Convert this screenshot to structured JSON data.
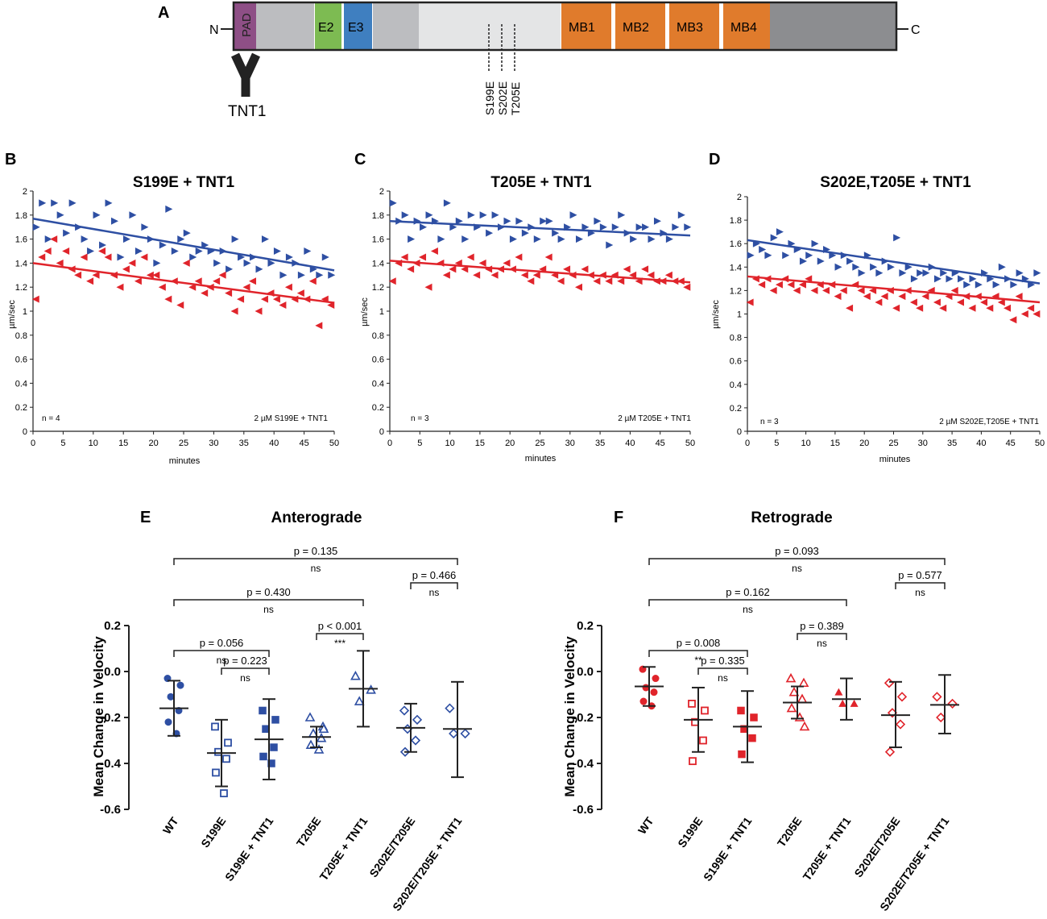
{
  "panels": {
    "A": {
      "label": "A",
      "n_term": "N",
      "c_term": "C",
      "domains": [
        "PAD",
        "E2",
        "E3",
        "MB1",
        "MB2",
        "MB3",
        "MB4"
      ],
      "sites": [
        "S199E",
        "S202E",
        "T205E"
      ],
      "antibody": "TNT1",
      "colors": {
        "pad": "#8e4f86",
        "e2": "#7dbb52",
        "e3": "#3f7fc0",
        "mb": "#e07b2c",
        "grey": "#bcbdc0",
        "light": "#e4e5e6",
        "dark": "#8c8d90"
      }
    }
  },
  "chart_data": [
    {
      "id": "B",
      "label": "B",
      "type": "scatter",
      "title": "S199E + TNT1",
      "xlabel": "minutes",
      "ylabel": "µm/sec",
      "xlim": [
        0,
        50
      ],
      "ylim": [
        0,
        2
      ],
      "xticks": [
        "0",
        "5",
        "10",
        "15",
        "20",
        "25",
        "30",
        "35",
        "40",
        "45",
        "50"
      ],
      "yticks": [
        "0",
        "0.2",
        "0.4",
        "0.6",
        "0.8",
        "1",
        "1.2",
        "1.4",
        "1.6",
        "1.8",
        "2"
      ],
      "n_label": "n = 4",
      "condition": "2 µM S199E + TNT1",
      "series": [
        {
          "name": "anterograde",
          "color": "#2e4fa3",
          "marker": "right-triangle",
          "trend": [
            1.77,
            1.34
          ],
          "x": [
            0,
            1,
            2,
            3,
            4,
            5,
            6,
            7,
            8,
            9,
            10,
            11,
            12,
            13,
            14,
            15,
            16,
            17,
            18,
            19,
            20,
            21,
            22,
            23,
            24,
            25,
            26,
            27,
            28,
            29,
            30,
            31,
            32,
            33,
            34,
            35,
            36,
            37,
            38,
            39,
            40,
            41,
            42,
            43,
            44,
            45,
            46,
            47,
            48,
            49
          ],
          "y": [
            1.7,
            1.9,
            1.6,
            1.9,
            1.8,
            1.65,
            1.9,
            1.7,
            1.6,
            1.5,
            1.8,
            1.55,
            1.9,
            1.75,
            1.45,
            1.6,
            1.8,
            1.5,
            1.7,
            1.6,
            1.4,
            1.55,
            1.85,
            1.5,
            1.6,
            1.65,
            1.45,
            1.5,
            1.55,
            1.5,
            1.4,
            1.5,
            1.35,
            1.6,
            1.45,
            1.4,
            1.45,
            1.35,
            1.6,
            1.4,
            1.5,
            1.3,
            1.45,
            1.4,
            1.3,
            1.5,
            1.35,
            1.3,
            1.45,
            1.3
          ]
        },
        {
          "name": "retrograde",
          "color": "#e0242b",
          "marker": "left-triangle",
          "trend": [
            1.4,
            1.07
          ],
          "x": [
            0,
            1,
            2,
            3,
            4,
            5,
            6,
            7,
            8,
            9,
            10,
            11,
            12,
            13,
            14,
            15,
            16,
            17,
            18,
            19,
            20,
            21,
            22,
            23,
            24,
            25,
            26,
            27,
            28,
            29,
            30,
            31,
            32,
            33,
            34,
            35,
            36,
            37,
            38,
            39,
            40,
            41,
            42,
            43,
            44,
            45,
            46,
            47,
            48,
            49
          ],
          "y": [
            1.1,
            1.45,
            1.5,
            1.6,
            1.4,
            1.5,
            1.35,
            1.3,
            1.45,
            1.25,
            1.3,
            1.5,
            1.45,
            1.3,
            1.2,
            1.35,
            1.4,
            1.25,
            1.45,
            1.3,
            1.3,
            1.2,
            1.1,
            1.25,
            1.05,
            1.4,
            1.2,
            1.25,
            1.15,
            1.2,
            1.25,
            1.3,
            1.15,
            1.0,
            1.1,
            1.2,
            1.25,
            1.0,
            1.1,
            1.15,
            1.1,
            1.05,
            1.2,
            1.1,
            1.15,
            1.1,
            1.25,
            0.88,
            1.1,
            1.05
          ]
        }
      ]
    },
    {
      "id": "C",
      "label": "C",
      "type": "scatter",
      "title": "T205E + TNT1",
      "xlabel": "minutes",
      "ylabel": "µm/sec",
      "xlim": [
        0,
        50
      ],
      "ylim": [
        0,
        2
      ],
      "xticks": [
        "0",
        "5",
        "10",
        "15",
        "20",
        "25",
        "30",
        "35",
        "40",
        "45",
        "50"
      ],
      "yticks": [
        "0",
        "0.2",
        "0.4",
        "0.6",
        "0.8",
        "1",
        "1.2",
        "1.4",
        "1.6",
        "1.8",
        "2"
      ],
      "n_label": "n = 3",
      "condition": "2 µM T205E + TNT1",
      "series": [
        {
          "name": "anterograde",
          "color": "#2e4fa3",
          "marker": "right-triangle",
          "trend": [
            1.75,
            1.63
          ],
          "x": [
            0,
            1,
            2,
            3,
            4,
            5,
            6,
            7,
            8,
            9,
            10,
            11,
            12,
            13,
            14,
            15,
            16,
            17,
            18,
            19,
            20,
            21,
            22,
            23,
            24,
            25,
            26,
            27,
            28,
            29,
            30,
            31,
            32,
            33,
            34,
            35,
            36,
            37,
            38,
            39,
            40,
            41,
            42,
            43,
            44,
            45,
            46,
            47,
            48,
            49
          ],
          "y": [
            1.9,
            1.75,
            1.8,
            1.6,
            1.75,
            1.7,
            1.8,
            1.75,
            1.6,
            1.9,
            1.7,
            1.75,
            1.6,
            1.8,
            1.7,
            1.8,
            1.65,
            1.8,
            1.7,
            1.75,
            1.6,
            1.75,
            1.65,
            1.7,
            1.6,
            1.75,
            1.75,
            1.65,
            1.6,
            1.7,
            1.8,
            1.6,
            1.7,
            1.65,
            1.75,
            1.7,
            1.55,
            1.7,
            1.8,
            1.65,
            1.6,
            1.7,
            1.7,
            1.6,
            1.75,
            1.65,
            1.6,
            1.7,
            1.8,
            1.7
          ]
        },
        {
          "name": "retrograde",
          "color": "#e0242b",
          "marker": "left-triangle",
          "trend": [
            1.42,
            1.24
          ],
          "x": [
            0,
            1,
            2,
            3,
            4,
            5,
            6,
            7,
            8,
            9,
            10,
            11,
            12,
            13,
            14,
            15,
            16,
            17,
            18,
            19,
            20,
            21,
            22,
            23,
            24,
            25,
            26,
            27,
            28,
            29,
            30,
            31,
            32,
            33,
            34,
            35,
            36,
            37,
            38,
            39,
            40,
            41,
            42,
            43,
            44,
            45,
            46,
            47,
            48,
            49
          ],
          "y": [
            1.25,
            1.4,
            1.45,
            1.35,
            1.4,
            1.45,
            1.2,
            1.5,
            1.4,
            1.3,
            1.35,
            1.4,
            1.35,
            1.45,
            1.3,
            1.4,
            1.35,
            1.3,
            1.35,
            1.4,
            1.35,
            1.45,
            1.3,
            1.25,
            1.3,
            1.35,
            1.45,
            1.3,
            1.25,
            1.35,
            1.3,
            1.2,
            1.35,
            1.3,
            1.25,
            1.3,
            1.25,
            1.3,
            1.25,
            1.35,
            1.3,
            1.25,
            1.35,
            1.3,
            1.25,
            1.25,
            1.3,
            1.25,
            1.25,
            1.2
          ]
        }
      ]
    },
    {
      "id": "D",
      "label": "D",
      "type": "scatter",
      "title": "S202E,T205E + TNT1",
      "xlabel": "minutes",
      "ylabel": "µm/sec",
      "xlim": [
        0,
        50
      ],
      "ylim": [
        0,
        2
      ],
      "xticks": [
        "0",
        "5",
        "10",
        "15",
        "20",
        "25",
        "30",
        "35",
        "40",
        "45",
        "50"
      ],
      "yticks": [
        "0",
        "0.2",
        "0.4",
        "0.6",
        "0.8",
        "1",
        "1.2",
        "1.4",
        "1.6",
        "1.8",
        "2"
      ],
      "n_label": "n = 3",
      "condition": "2 µM S202E,T205E + TNT1",
      "series": [
        {
          "name": "anterograde",
          "color": "#2e4fa3",
          "marker": "right-triangle",
          "trend": [
            1.63,
            1.26
          ],
          "x": [
            0,
            1,
            2,
            3,
            4,
            5,
            6,
            7,
            8,
            9,
            10,
            11,
            12,
            13,
            14,
            15,
            16,
            17,
            18,
            19,
            20,
            21,
            22,
            23,
            24,
            25,
            26,
            27,
            28,
            29,
            30,
            31,
            32,
            33,
            34,
            35,
            36,
            37,
            38,
            39,
            40,
            41,
            42,
            43,
            44,
            45,
            46,
            47,
            48,
            49
          ],
          "y": [
            1.5,
            1.6,
            1.55,
            1.5,
            1.65,
            1.7,
            1.5,
            1.6,
            1.55,
            1.45,
            1.5,
            1.6,
            1.45,
            1.55,
            1.5,
            1.4,
            1.5,
            1.45,
            1.4,
            1.35,
            1.5,
            1.4,
            1.35,
            1.45,
            1.4,
            1.65,
            1.35,
            1.4,
            1.3,
            1.35,
            1.35,
            1.4,
            1.3,
            1.35,
            1.3,
            1.35,
            1.3,
            1.25,
            1.3,
            1.25,
            1.35,
            1.3,
            1.25,
            1.4,
            1.3,
            1.25,
            1.35,
            1.3,
            1.25,
            1.35
          ]
        },
        {
          "name": "retrograde",
          "color": "#e0242b",
          "marker": "left-triangle",
          "trend": [
            1.32,
            1.1
          ],
          "x": [
            0,
            1,
            2,
            3,
            4,
            5,
            6,
            7,
            8,
            9,
            10,
            11,
            12,
            13,
            14,
            15,
            16,
            17,
            18,
            19,
            20,
            21,
            22,
            23,
            24,
            25,
            26,
            27,
            28,
            29,
            30,
            31,
            32,
            33,
            34,
            35,
            36,
            37,
            38,
            39,
            40,
            41,
            42,
            43,
            44,
            45,
            46,
            47,
            48,
            49
          ],
          "y": [
            1.1,
            1.3,
            1.25,
            1.3,
            1.2,
            1.25,
            1.3,
            1.25,
            1.2,
            1.25,
            1.3,
            1.2,
            1.25,
            1.2,
            1.25,
            1.15,
            1.2,
            1.05,
            1.25,
            1.2,
            1.15,
            1.2,
            1.1,
            1.15,
            1.2,
            1.05,
            1.15,
            1.2,
            1.1,
            1.05,
            1.15,
            1.2,
            1.1,
            1.05,
            1.15,
            1.2,
            1.1,
            1.15,
            1.05,
            1.15,
            1.1,
            1.05,
            1.15,
            1.1,
            1.05,
            0.95,
            1.15,
            1.0,
            1.05,
            1.0
          ]
        }
      ]
    },
    {
      "id": "E",
      "label": "E",
      "type": "scatter",
      "title": "Anterograde",
      "xlabel": "",
      "ylabel": "Mean Change in Velocity",
      "ylim": [
        -0.6,
        0.2
      ],
      "yticks": [
        "-0.6",
        "-0.4",
        "-0.2",
        "0.0",
        "0.2"
      ],
      "color": "#2e4fa3",
      "categories": [
        "WT",
        "S199E",
        "S199E + TNT1",
        "T205E",
        "T205E + TNT1",
        "S202E/T205E",
        "S202E/T205E + TNT1"
      ],
      "markers": [
        "circle",
        "open-square",
        "cross-square",
        "open-triangle",
        "open-triangle",
        "open-diamond",
        "open-diamond"
      ],
      "points": [
        [
          -0.03,
          -0.06,
          -0.11,
          -0.17,
          -0.22,
          -0.27
        ],
        [
          -0.24,
          -0.31,
          -0.35,
          -0.38,
          -0.44,
          -0.53
        ],
        [
          -0.17,
          -0.21,
          -0.25,
          -0.33,
          -0.37,
          -0.4
        ],
        [
          -0.2,
          -0.24,
          -0.27,
          -0.29,
          -0.32,
          -0.34,
          -0.25
        ],
        [
          -0.02,
          -0.08,
          -0.13
        ],
        [
          -0.17,
          -0.21,
          -0.25,
          -0.3,
          -0.35
        ],
        [
          -0.16,
          -0.27,
          -0.27
        ]
      ],
      "mean": [
        -0.16,
        -0.355,
        -0.295,
        -0.285,
        -0.075,
        -0.245,
        -0.25
      ],
      "sd_low": [
        -0.28,
        -0.5,
        -0.47,
        -0.33,
        -0.24,
        -0.35,
        -0.46
      ],
      "sd_high": [
        -0.04,
        -0.21,
        -0.12,
        -0.24,
        0.09,
        -0.14,
        -0.045
      ],
      "comparisons": [
        {
          "from": 0,
          "to": 6,
          "level": 0,
          "p": "p = 0.135",
          "sig": "ns"
        },
        {
          "from": 5,
          "to": 6,
          "level": 1,
          "p": "p = 0.466",
          "sig": "ns"
        },
        {
          "from": 0,
          "to": 4,
          "level": 2,
          "p": "p = 0.430",
          "sig": "ns"
        },
        {
          "from": 3,
          "to": 4,
          "level": 3,
          "p": "p < 0.001",
          "sig": "***"
        },
        {
          "from": 0,
          "to": 2,
          "level": 4,
          "p": "p = 0.056",
          "sig": "ns"
        },
        {
          "from": 1,
          "to": 2,
          "level": 5,
          "p": "p = 0.223",
          "sig": "ns"
        }
      ]
    },
    {
      "id": "F",
      "label": "F",
      "type": "scatter",
      "title": "Retrograde",
      "xlabel": "",
      "ylabel": "Mean Change in Velocity",
      "ylim": [
        -0.6,
        0.2
      ],
      "yticks": [
        "-0.6",
        "-0.4",
        "-0.2",
        "0.0",
        "0.2"
      ],
      "color": "#e0242b",
      "categories": [
        "WT",
        "S199E",
        "S199E + TNT1",
        "T205E",
        "T205E + TNT1",
        "S202E/T205E",
        "S202E/T205E + TNT1"
      ],
      "markers": [
        "circle",
        "open-square",
        "cross-square",
        "open-triangle",
        "filled-triangle",
        "open-diamond",
        "open-diamond"
      ],
      "points": [
        [
          0.01,
          -0.03,
          -0.07,
          -0.09,
          -0.13,
          -0.15
        ],
        [
          -0.14,
          -0.17,
          -0.22,
          -0.3,
          -0.39
        ],
        [
          -0.17,
          -0.2,
          -0.25,
          -0.29,
          -0.36
        ],
        [
          -0.03,
          -0.05,
          -0.09,
          -0.12,
          -0.16,
          -0.2,
          -0.24
        ],
        [
          -0.09,
          -0.14,
          -0.14
        ],
        [
          -0.05,
          -0.11,
          -0.18,
          -0.23,
          -0.35
        ],
        [
          -0.11,
          -0.14,
          -0.2
        ]
      ],
      "mean": [
        -0.065,
        -0.21,
        -0.24,
        -0.135,
        -0.12,
        -0.19,
        -0.145
      ],
      "sd_low": [
        -0.15,
        -0.35,
        -0.395,
        -0.205,
        -0.21,
        -0.33,
        -0.27
      ],
      "sd_high": [
        0.02,
        -0.07,
        -0.085,
        -0.065,
        -0.03,
        -0.045,
        -0.015
      ],
      "comparisons": [
        {
          "from": 0,
          "to": 6,
          "level": 0,
          "p": "p = 0.093",
          "sig": "ns"
        },
        {
          "from": 5,
          "to": 6,
          "level": 1,
          "p": "p = 0.577",
          "sig": "ns"
        },
        {
          "from": 0,
          "to": 4,
          "level": 2,
          "p": "p = 0.162",
          "sig": "ns"
        },
        {
          "from": 3,
          "to": 4,
          "level": 3,
          "p": "p = 0.389",
          "sig": "ns"
        },
        {
          "from": 0,
          "to": 2,
          "level": 4,
          "p": "p = 0.008",
          "sig": "**"
        },
        {
          "from": 1,
          "to": 2,
          "level": 5,
          "p": "p = 0.335",
          "sig": "ns"
        }
      ]
    }
  ]
}
